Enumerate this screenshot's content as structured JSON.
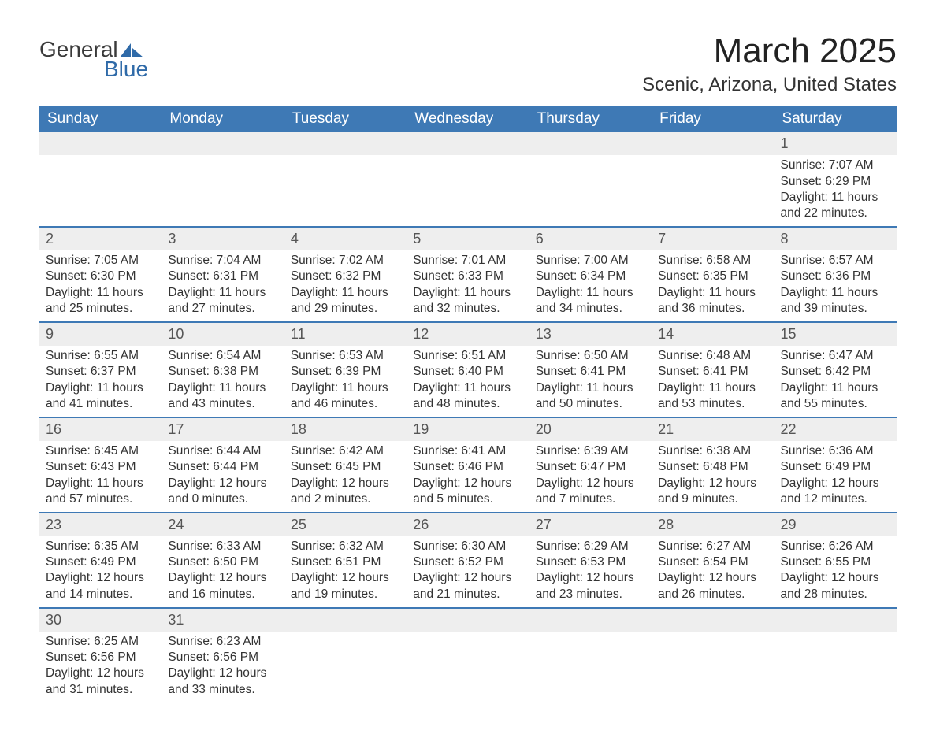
{
  "logo": {
    "text1": "General",
    "text2": "Blue",
    "icon_color": "#2f6aa8"
  },
  "header": {
    "month_title": "March 2025",
    "location": "Scenic, Arizona, United States"
  },
  "theme": {
    "header_bg": "#3e79b5",
    "header_fg": "#ffffff",
    "daynum_bg": "#eeeeee",
    "row_border": "#3e79b5",
    "text_color": "#333333"
  },
  "day_names": [
    "Sunday",
    "Monday",
    "Tuesday",
    "Wednesday",
    "Thursday",
    "Friday",
    "Saturday"
  ],
  "weeks": [
    [
      null,
      null,
      null,
      null,
      null,
      null,
      {
        "n": "1",
        "sr": "Sunrise: 7:07 AM",
        "ss": "Sunset: 6:29 PM",
        "d1": "Daylight: 11 hours",
        "d2": "and 22 minutes."
      }
    ],
    [
      {
        "n": "2",
        "sr": "Sunrise: 7:05 AM",
        "ss": "Sunset: 6:30 PM",
        "d1": "Daylight: 11 hours",
        "d2": "and 25 minutes."
      },
      {
        "n": "3",
        "sr": "Sunrise: 7:04 AM",
        "ss": "Sunset: 6:31 PM",
        "d1": "Daylight: 11 hours",
        "d2": "and 27 minutes."
      },
      {
        "n": "4",
        "sr": "Sunrise: 7:02 AM",
        "ss": "Sunset: 6:32 PM",
        "d1": "Daylight: 11 hours",
        "d2": "and 29 minutes."
      },
      {
        "n": "5",
        "sr": "Sunrise: 7:01 AM",
        "ss": "Sunset: 6:33 PM",
        "d1": "Daylight: 11 hours",
        "d2": "and 32 minutes."
      },
      {
        "n": "6",
        "sr": "Sunrise: 7:00 AM",
        "ss": "Sunset: 6:34 PM",
        "d1": "Daylight: 11 hours",
        "d2": "and 34 minutes."
      },
      {
        "n": "7",
        "sr": "Sunrise: 6:58 AM",
        "ss": "Sunset: 6:35 PM",
        "d1": "Daylight: 11 hours",
        "d2": "and 36 minutes."
      },
      {
        "n": "8",
        "sr": "Sunrise: 6:57 AM",
        "ss": "Sunset: 6:36 PM",
        "d1": "Daylight: 11 hours",
        "d2": "and 39 minutes."
      }
    ],
    [
      {
        "n": "9",
        "sr": "Sunrise: 6:55 AM",
        "ss": "Sunset: 6:37 PM",
        "d1": "Daylight: 11 hours",
        "d2": "and 41 minutes."
      },
      {
        "n": "10",
        "sr": "Sunrise: 6:54 AM",
        "ss": "Sunset: 6:38 PM",
        "d1": "Daylight: 11 hours",
        "d2": "and 43 minutes."
      },
      {
        "n": "11",
        "sr": "Sunrise: 6:53 AM",
        "ss": "Sunset: 6:39 PM",
        "d1": "Daylight: 11 hours",
        "d2": "and 46 minutes."
      },
      {
        "n": "12",
        "sr": "Sunrise: 6:51 AM",
        "ss": "Sunset: 6:40 PM",
        "d1": "Daylight: 11 hours",
        "d2": "and 48 minutes."
      },
      {
        "n": "13",
        "sr": "Sunrise: 6:50 AM",
        "ss": "Sunset: 6:41 PM",
        "d1": "Daylight: 11 hours",
        "d2": "and 50 minutes."
      },
      {
        "n": "14",
        "sr": "Sunrise: 6:48 AM",
        "ss": "Sunset: 6:41 PM",
        "d1": "Daylight: 11 hours",
        "d2": "and 53 minutes."
      },
      {
        "n": "15",
        "sr": "Sunrise: 6:47 AM",
        "ss": "Sunset: 6:42 PM",
        "d1": "Daylight: 11 hours",
        "d2": "and 55 minutes."
      }
    ],
    [
      {
        "n": "16",
        "sr": "Sunrise: 6:45 AM",
        "ss": "Sunset: 6:43 PM",
        "d1": "Daylight: 11 hours",
        "d2": "and 57 minutes."
      },
      {
        "n": "17",
        "sr": "Sunrise: 6:44 AM",
        "ss": "Sunset: 6:44 PM",
        "d1": "Daylight: 12 hours",
        "d2": "and 0 minutes."
      },
      {
        "n": "18",
        "sr": "Sunrise: 6:42 AM",
        "ss": "Sunset: 6:45 PM",
        "d1": "Daylight: 12 hours",
        "d2": "and 2 minutes."
      },
      {
        "n": "19",
        "sr": "Sunrise: 6:41 AM",
        "ss": "Sunset: 6:46 PM",
        "d1": "Daylight: 12 hours",
        "d2": "and 5 minutes."
      },
      {
        "n": "20",
        "sr": "Sunrise: 6:39 AM",
        "ss": "Sunset: 6:47 PM",
        "d1": "Daylight: 12 hours",
        "d2": "and 7 minutes."
      },
      {
        "n": "21",
        "sr": "Sunrise: 6:38 AM",
        "ss": "Sunset: 6:48 PM",
        "d1": "Daylight: 12 hours",
        "d2": "and 9 minutes."
      },
      {
        "n": "22",
        "sr": "Sunrise: 6:36 AM",
        "ss": "Sunset: 6:49 PM",
        "d1": "Daylight: 12 hours",
        "d2": "and 12 minutes."
      }
    ],
    [
      {
        "n": "23",
        "sr": "Sunrise: 6:35 AM",
        "ss": "Sunset: 6:49 PM",
        "d1": "Daylight: 12 hours",
        "d2": "and 14 minutes."
      },
      {
        "n": "24",
        "sr": "Sunrise: 6:33 AM",
        "ss": "Sunset: 6:50 PM",
        "d1": "Daylight: 12 hours",
        "d2": "and 16 minutes."
      },
      {
        "n": "25",
        "sr": "Sunrise: 6:32 AM",
        "ss": "Sunset: 6:51 PM",
        "d1": "Daylight: 12 hours",
        "d2": "and 19 minutes."
      },
      {
        "n": "26",
        "sr": "Sunrise: 6:30 AM",
        "ss": "Sunset: 6:52 PM",
        "d1": "Daylight: 12 hours",
        "d2": "and 21 minutes."
      },
      {
        "n": "27",
        "sr": "Sunrise: 6:29 AM",
        "ss": "Sunset: 6:53 PM",
        "d1": "Daylight: 12 hours",
        "d2": "and 23 minutes."
      },
      {
        "n": "28",
        "sr": "Sunrise: 6:27 AM",
        "ss": "Sunset: 6:54 PM",
        "d1": "Daylight: 12 hours",
        "d2": "and 26 minutes."
      },
      {
        "n": "29",
        "sr": "Sunrise: 6:26 AM",
        "ss": "Sunset: 6:55 PM",
        "d1": "Daylight: 12 hours",
        "d2": "and 28 minutes."
      }
    ],
    [
      {
        "n": "30",
        "sr": "Sunrise: 6:25 AM",
        "ss": "Sunset: 6:56 PM",
        "d1": "Daylight: 12 hours",
        "d2": "and 31 minutes."
      },
      {
        "n": "31",
        "sr": "Sunrise: 6:23 AM",
        "ss": "Sunset: 6:56 PM",
        "d1": "Daylight: 12 hours",
        "d2": "and 33 minutes."
      },
      null,
      null,
      null,
      null,
      null
    ]
  ]
}
